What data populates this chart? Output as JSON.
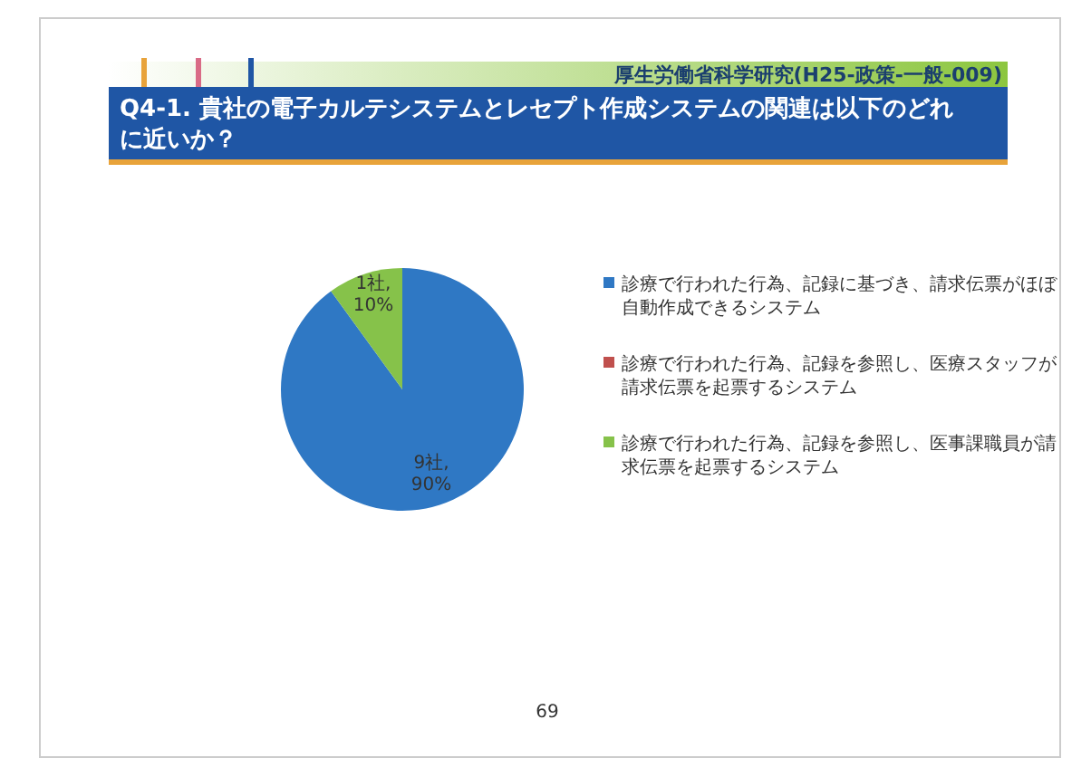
{
  "chart_data": {
    "type": "pie",
    "title": "Q4-1. 貴社の電子カルテシステムとレセプト作成システムの関連は以下のどれに近いか？",
    "subtitle": "厚生労働省科学研究(H25-政策-一般-009)",
    "categories": [
      "診療で行われた行為、記録に基づき、請求伝票がほぼ自動作成できるシステム",
      "診療で行われた行為、記録を参照し、医療スタッフが請求伝票を起票するシステム",
      "診療で行われた行為、記録を参照し、医事課職員が請求伝票を起票するシステム"
    ],
    "values": [
      9,
      0,
      1
    ],
    "value_labels": [
      "9社, 90%",
      null,
      "1社, 10%"
    ],
    "colors": [
      "#2f78c4",
      "#c0504d",
      "#86c24a"
    ],
    "legend": "right",
    "annotations": [
      "69"
    ]
  }
}
